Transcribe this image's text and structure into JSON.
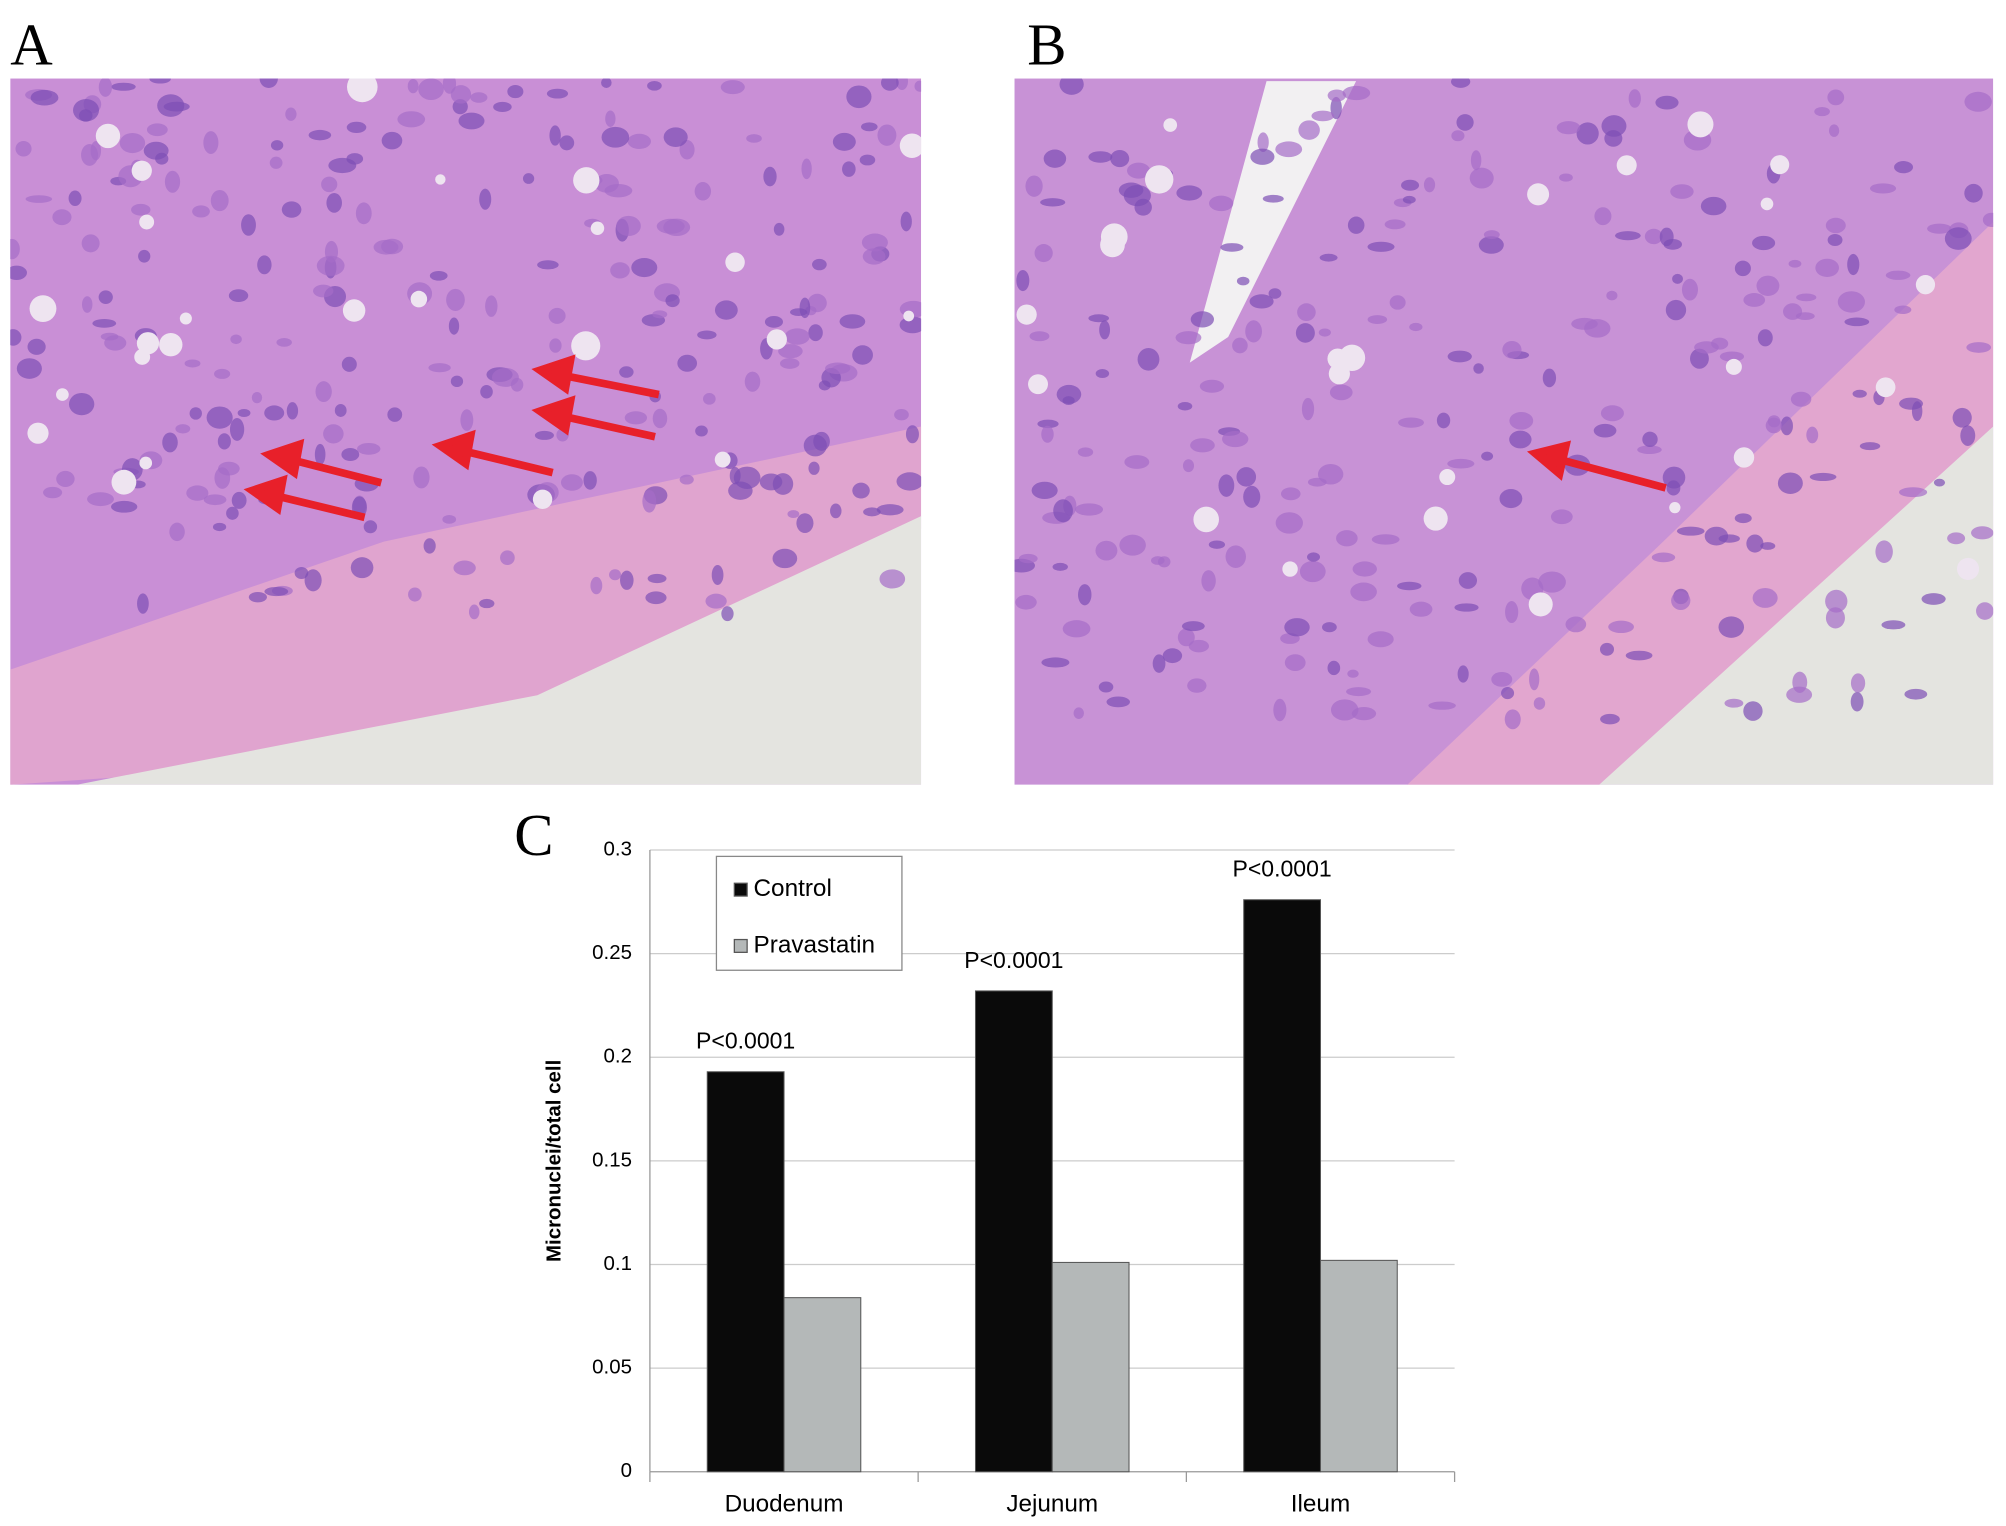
{
  "panel_labels": [
    "A",
    "B",
    "C"
  ],
  "chart_data": {
    "type": "bar",
    "y_label": "Micronuclei/total cell",
    "categories": [
      "Duodenum",
      "Jejunum",
      "Ileum"
    ],
    "series": [
      {
        "name": "Control",
        "color": "#0a0a0a",
        "values": [
          0.193,
          0.232,
          0.276
        ]
      },
      {
        "name": "Pravastatin",
        "color": "#b4b8b8",
        "values": [
          0.084,
          0.101,
          0.102
        ]
      }
    ],
    "annotations": [
      "P<0.0001",
      "P<0.0001",
      "P<0.0001"
    ],
    "ylim": [
      0,
      0.3
    ],
    "yticks": [
      0,
      0.05,
      0.1,
      0.15,
      0.2,
      0.25,
      0.3
    ],
    "grid": true
  }
}
